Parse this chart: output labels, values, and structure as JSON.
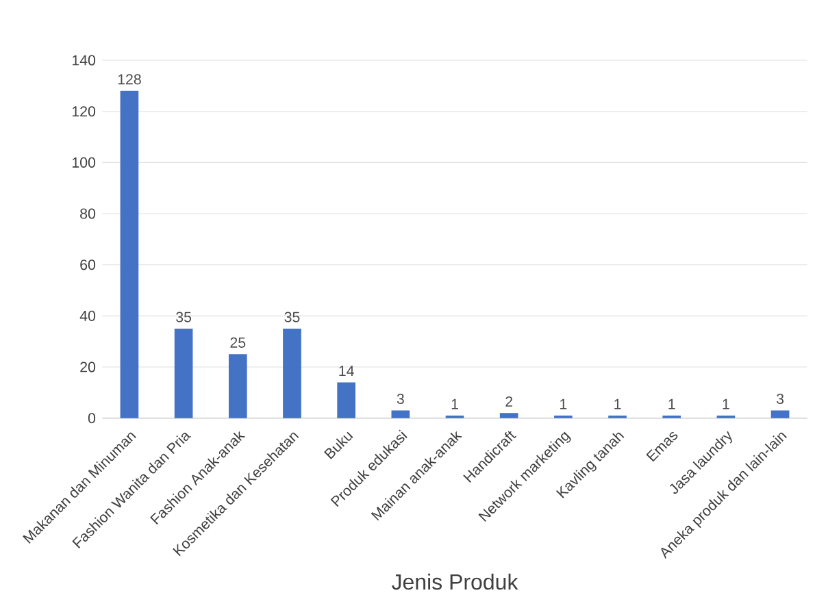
{
  "chart_data": {
    "type": "bar",
    "xlabel": "Jenis Produk",
    "categories": [
      "Makanan dan Minuman",
      "Fashion Wanita dan Pria",
      "Fashion Anak-anak",
      "Kosmetika dan Kesehatan",
      "Buku",
      "Produk edukasi",
      "Mainan anak-anak",
      "Handicraft",
      "Network marketing",
      "Kavling tanah",
      "Emas",
      "Jasa laundry",
      "Aneka produk dan lain-lain"
    ],
    "values": [
      128,
      35,
      25,
      35,
      14,
      3,
      1,
      2,
      1,
      1,
      1,
      1,
      3
    ],
    "color": "#4472c4",
    "ylim": [
      0,
      140
    ],
    "yticks": [
      0,
      20,
      40,
      60,
      80,
      100,
      120,
      140
    ],
    "grid": "y",
    "data_labels": true
  }
}
